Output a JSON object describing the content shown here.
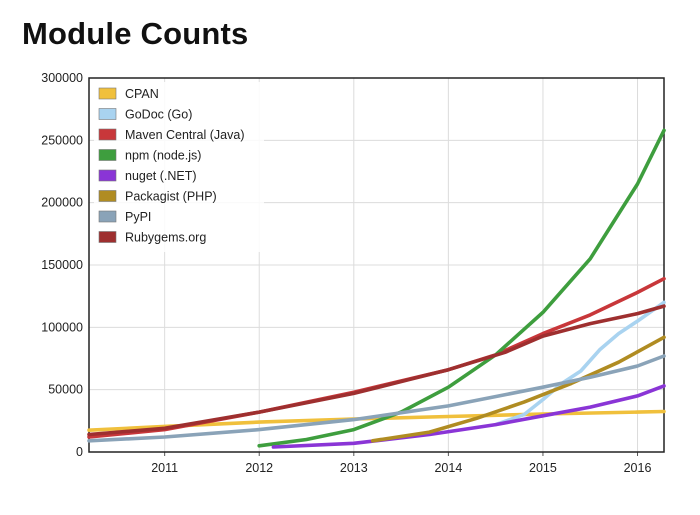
{
  "title": "Module Counts",
  "chart_data": {
    "type": "line",
    "title": "Module Counts",
    "xlabel": "",
    "ylabel": "",
    "xlim": [
      2010.2,
      2016.28
    ],
    "ylim": [
      0,
      300000
    ],
    "x_ticks": [
      "2011",
      "2012",
      "2013",
      "2014",
      "2015",
      "2016"
    ],
    "y_ticks": [
      "0",
      "50000",
      "100000",
      "150000",
      "200000",
      "250000",
      "300000"
    ],
    "grid": true,
    "legend_position": "top-left",
    "series": [
      {
        "name": "CPAN",
        "color": "#f0c03c",
        "points": [
          [
            2010.2,
            17500
          ],
          [
            2011.0,
            20500
          ],
          [
            2012.0,
            24000
          ],
          [
            2013.0,
            26500
          ],
          [
            2014.0,
            28500
          ],
          [
            2015.0,
            30500
          ],
          [
            2016.0,
            32000
          ],
          [
            2016.28,
            32500
          ]
        ]
      },
      {
        "name": "GoDoc (Go)",
        "color": "#a9d3f0",
        "points": [
          [
            2014.5,
            22000
          ],
          [
            2014.8,
            30000
          ],
          [
            2015.0,
            42000
          ],
          [
            2015.2,
            55000
          ],
          [
            2015.4,
            65000
          ],
          [
            2015.6,
            82000
          ],
          [
            2015.8,
            95000
          ],
          [
            2016.0,
            105000
          ],
          [
            2016.28,
            120000
          ]
        ]
      },
      {
        "name": "Maven Central (Java)",
        "color": "#c8373a",
        "points": [
          [
            2010.2,
            12000
          ],
          [
            2011.0,
            18000
          ],
          [
            2012.0,
            32000
          ],
          [
            2013.0,
            48000
          ],
          [
            2014.0,
            66000
          ],
          [
            2014.5,
            78000
          ],
          [
            2015.0,
            95000
          ],
          [
            2015.5,
            110000
          ],
          [
            2016.0,
            128000
          ],
          [
            2016.28,
            139000
          ]
        ]
      },
      {
        "name": "npm (node.js)",
        "color": "#3e9e3e",
        "points": [
          [
            2012.0,
            5000
          ],
          [
            2012.5,
            10000
          ],
          [
            2013.0,
            18000
          ],
          [
            2013.5,
            32000
          ],
          [
            2014.0,
            52000
          ],
          [
            2014.5,
            78000
          ],
          [
            2015.0,
            112000
          ],
          [
            2015.5,
            155000
          ],
          [
            2016.0,
            215000
          ],
          [
            2016.28,
            258000
          ]
        ]
      },
      {
        "name": "nuget (.NET)",
        "color": "#8a35d6",
        "points": [
          [
            2012.15,
            4000
          ],
          [
            2013.0,
            7000
          ],
          [
            2013.8,
            14000
          ],
          [
            2014.5,
            22000
          ],
          [
            2015.0,
            29000
          ],
          [
            2015.5,
            36000
          ],
          [
            2016.0,
            45000
          ],
          [
            2016.28,
            53000
          ]
        ]
      },
      {
        "name": "Packagist (PHP)",
        "color": "#b08c22",
        "points": [
          [
            2013.2,
            9000
          ],
          [
            2013.8,
            16000
          ],
          [
            2014.3,
            27000
          ],
          [
            2014.8,
            40000
          ],
          [
            2015.3,
            55000
          ],
          [
            2015.8,
            72000
          ],
          [
            2016.28,
            92000
          ]
        ]
      },
      {
        "name": "PyPI",
        "color": "#8aa3b8",
        "points": [
          [
            2010.2,
            9000
          ],
          [
            2011.0,
            12000
          ],
          [
            2012.0,
            18000
          ],
          [
            2013.0,
            26000
          ],
          [
            2014.0,
            37000
          ],
          [
            2015.0,
            52000
          ],
          [
            2015.5,
            60000
          ],
          [
            2016.0,
            69000
          ],
          [
            2016.28,
            77000
          ]
        ]
      },
      {
        "name": "Rubygems.org",
        "color": "#9e2f2f",
        "points": [
          [
            2010.2,
            14000
          ],
          [
            2011.0,
            19000
          ],
          [
            2012.0,
            32000
          ],
          [
            2013.0,
            47000
          ],
          [
            2014.0,
            66000
          ],
          [
            2014.6,
            80000
          ],
          [
            2015.0,
            93000
          ],
          [
            2015.5,
            103000
          ],
          [
            2016.0,
            111000
          ],
          [
            2016.28,
            117000
          ]
        ]
      }
    ]
  }
}
